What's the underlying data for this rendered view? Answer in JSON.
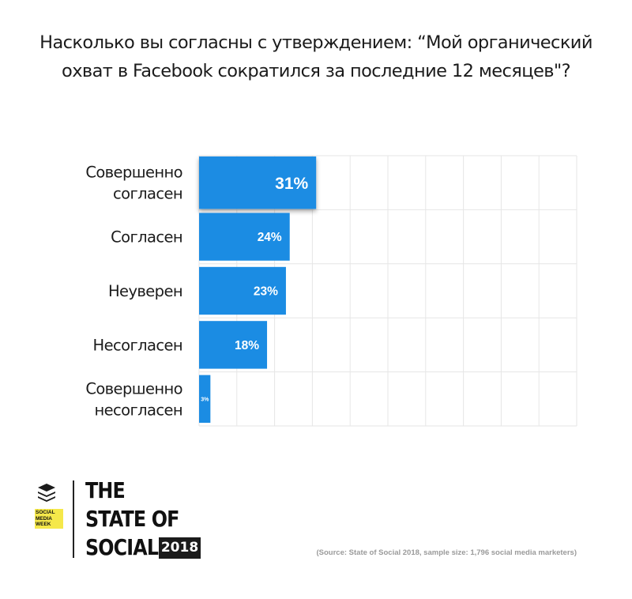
{
  "title_line1": "Насколько вы согласны с утверждением: “Мой органический",
  "title_line2": "охват в Facebook сократился за последние 12 месяцев\"?",
  "chart_data": {
    "type": "bar",
    "orientation": "horizontal",
    "categories": [
      [
        "Совершенно",
        "согласен"
      ],
      [
        "Согласен"
      ],
      [
        "Неуверен"
      ],
      [
        "Несогласен"
      ],
      [
        "Совершенно",
        "несогласен"
      ]
    ],
    "values": [
      31,
      24,
      23,
      18,
      3
    ],
    "data_labels": [
      "31%",
      "24%",
      "23%",
      "18%",
      "3%"
    ],
    "highlight_index": 0,
    "xlim": [
      0,
      100
    ],
    "grid": true
  },
  "colors": {
    "bar": "#1b8ce3",
    "grid": "#e6e6e6",
    "label": "#ffffff"
  },
  "footer": {
    "brand_lines": [
      "THE",
      "STATE OF",
      "SOCIAL"
    ],
    "year": "2018",
    "smw_badge": [
      "SOCIAL",
      "MEDIA",
      "WEEK"
    ],
    "logo_icon": "buffer-stack-icon",
    "source": "(Source: State of Social 2018, sample size: 1,796 social media marketers)"
  }
}
